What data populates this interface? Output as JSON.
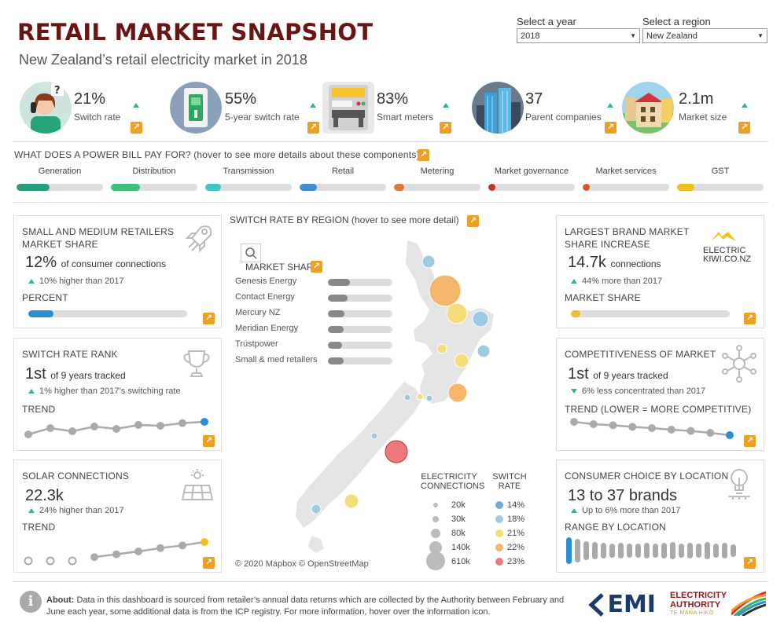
{
  "header": {
    "title": "RETAIL MARKET SNAPSHOT",
    "subtitle": "New Zealand’s retail electricity market in 2018",
    "year_label": "Select a year",
    "year_value": "2018",
    "region_label": "Select a region",
    "region_value": "New Zealand"
  },
  "kpis": [
    {
      "value": "21%",
      "label": "Switch rate",
      "icon": "person-phone-icon"
    },
    {
      "value": "55%",
      "label": "5-year switch rate",
      "icon": "light-switch-icon"
    },
    {
      "value": "83%",
      "label": "Smart meters",
      "icon": "smart-meter-icon"
    },
    {
      "value": "37",
      "label": "Parent companies",
      "icon": "skyscraper-icon"
    },
    {
      "value": "2.1m",
      "label": "Market size",
      "icon": "houses-icon"
    }
  ],
  "bill": {
    "title": "WHAT DOES A POWER BILL PAY FOR? (hover to see more details about these components)",
    "components": [
      {
        "label": "Generation",
        "color": "#2a9d7e",
        "fill": 0.38
      },
      {
        "label": "Distribution",
        "color": "#3cc07a",
        "fill": 0.34
      },
      {
        "label": "Transmission",
        "color": "#3cc8c8",
        "fill": 0.18
      },
      {
        "label": "Retail",
        "color": "#3a8fd8",
        "fill": 0.2
      },
      {
        "label": "Metering",
        "color": "#e07a2e",
        "fill": 0.12
      },
      {
        "label": "Market governance",
        "color": "#c8302a",
        "fill": 0.08
      },
      {
        "label": "Market services",
        "color": "#d55a20",
        "fill": 0.08
      },
      {
        "label": "GST",
        "color": "#f0c020",
        "fill": 0.2
      }
    ]
  },
  "small_medium": {
    "title_1": "SMALL AND MEDIUM RETAILERS",
    "title_2": "MARKET SHARE",
    "big": "12%",
    "big_suffix": "of consumer connections",
    "change": "10% higher than 2017",
    "percent_label": "PERCENT",
    "percent_fill": 0.16,
    "icon": "rocket-icon"
  },
  "switch_rank": {
    "title": "SWITCH RATE RANK",
    "big": "1st",
    "big_suffix": "of 9 years tracked",
    "change": "1% higher than 2017’s switching rate",
    "trend_label": "TREND",
    "trend": [
      0.2,
      0.6,
      0.4,
      0.7,
      0.55,
      0.8,
      0.75,
      0.92,
      1.0
    ],
    "icon": "trophy-icon"
  },
  "solar": {
    "title": "SOLAR CONNECTIONS",
    "big": "22.3k",
    "change": "24% higher than 2017",
    "trend_label": "TREND",
    "trend": [
      null,
      null,
      null,
      0.2,
      0.35,
      0.5,
      0.68,
      0.82,
      1.0
    ],
    "icon": "solar-panel-icon"
  },
  "map": {
    "title": "SWITCH RATE BY REGION (hover to see more detail)",
    "market_share_label": "MARKET SHARE",
    "market_share": [
      {
        "name": "Genesis Energy",
        "fill": 0.34
      },
      {
        "name": "Contact Energy",
        "fill": 0.3
      },
      {
        "name": "Mercury NZ",
        "fill": 0.26
      },
      {
        "name": "Meridian Energy",
        "fill": 0.24
      },
      {
        "name": "Trustpower",
        "fill": 0.22
      },
      {
        "name": "Small & med retailers",
        "fill": 0.24
      }
    ],
    "legend_conn_title_1": "ELECTRICITY",
    "legend_conn_title_2": "CONNECTIONS",
    "legend_rate_title_1": "SWITCH",
    "legend_rate_title_2": "RATE",
    "legend_conn": [
      "20k",
      "30k",
      "80k",
      "140k",
      "610k"
    ],
    "legend_rate": [
      {
        "label": "14%",
        "color": "#6baed6"
      },
      {
        "label": "18%",
        "color": "#9ecae1"
      },
      {
        "label": "21%",
        "color": "#f5de7a"
      },
      {
        "label": "22%",
        "color": "#f4b66a"
      },
      {
        "label": "23%",
        "color": "#ec7a7a"
      }
    ],
    "credit": "© 2020 Mapbox © OpenStreetMap",
    "search_icon": "search-icon"
  },
  "brand": {
    "title_1": "LARGEST BRAND MARKET",
    "title_2": "SHARE INCREASE",
    "big": "14.7k",
    "big_suffix": "connections",
    "change": "44% more than 2017",
    "share_label": "MARKET SHARE",
    "share_fill": 0.06,
    "logo_line1": "ELECTRIC",
    "logo_line2": "KIWI.CO.NZ"
  },
  "competitive": {
    "title": "COMPETITIVENESS OF MARKET",
    "big": "1st",
    "big_suffix": "of 9 years tracked",
    "change": "6% less concentrated than 2017",
    "trend_label": "TREND (LOWER = MORE COMPETITIVE)",
    "trend": [
      1.0,
      0.85,
      0.78,
      0.68,
      0.6,
      0.5,
      0.42,
      0.3,
      0.15
    ],
    "icon": "network-icon"
  },
  "choice": {
    "title": "CONSUMER CHOICE BY LOCATION",
    "big": "13 to 37 brands",
    "change": "Up to 6% more than 2017",
    "range_label": "RANGE BY LOCATION",
    "icon": "lightbulb-icon"
  },
  "footer": {
    "about_bold": "About:",
    "about_text": " Data in this dashboard is sourced from retailer’s annual data returns which are collected by the Authority between February and June each year, some additional data is from the ICP registry. For more information, hover over the information icon.",
    "emi": "EMI",
    "ea_line1": "ELECTRICITY",
    "ea_line2": "AUTHORITY",
    "ea_line3": "TE MANA HIKO"
  },
  "colors": {
    "accent": "#f0a020",
    "title": "#6b1414",
    "up": "#3bb37a",
    "blue": "#2b8fd6",
    "yellow": "#f0c020"
  }
}
